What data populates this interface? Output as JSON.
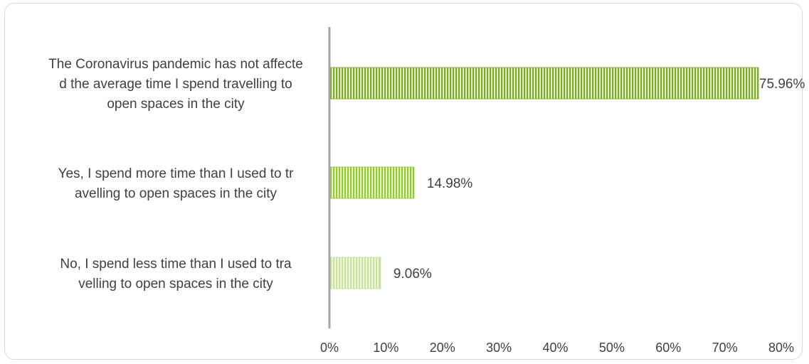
{
  "chart_data": {
    "type": "bar",
    "orientation": "horizontal",
    "categories": [
      [
        "The Coronavirus pandemic has not affecte",
        "d the average time I spend travelling to",
        "open spaces in the city"
      ],
      [
        "Yes, I spend more time than I used to tr",
        "avelling to open spaces in the city"
      ],
      [
        "No, I spend less time than I used to tra",
        "velling to open spaces in the city"
      ]
    ],
    "values": [
      75.96,
      14.98,
      9.06
    ],
    "data_labels": [
      "75.96%",
      "14.98%",
      "9.06%"
    ],
    "xlim": [
      0,
      80
    ],
    "xticks": [
      "0%",
      "10%",
      "20%",
      "30%",
      "40%",
      "50%",
      "60%",
      "70%",
      "80%"
    ],
    "grid": false,
    "legend": "none",
    "colors": [
      "#7fab2e",
      "#96c83c",
      "#c9e2a0"
    ]
  }
}
